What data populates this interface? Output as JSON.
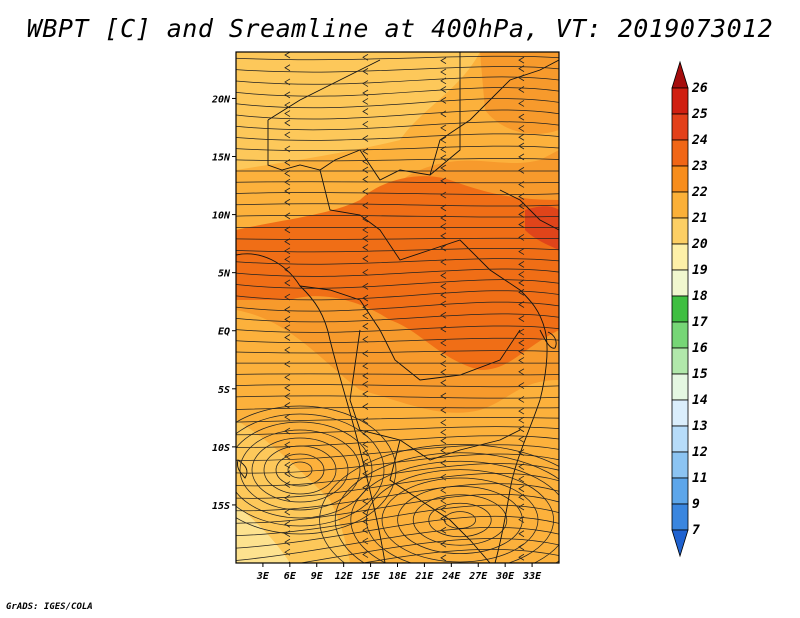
{
  "title": "WBPT [C] and Sreamline at 400hPa, VT: 2019073012",
  "footer": "GrADS: IGES/COLA",
  "map": {
    "lon_range": [
      0,
      36
    ],
    "lat_range": [
      -20,
      24
    ],
    "x_ticks": [
      "3E",
      "6E",
      "9E",
      "12E",
      "15E",
      "18E",
      "21E",
      "24E",
      "27E",
      "30E",
      "33E"
    ],
    "y_ticks": [
      "20N",
      "15N",
      "10N",
      "5N",
      "EQ",
      "5S",
      "10S",
      "15S"
    ],
    "field_colors": {
      "above_22": "#f06e16",
      "22_to_23": "#f79a2c",
      "21_to_22": "#fcb13c",
      "20_to_21": "#fdc85a",
      "below_20": "#fde28f",
      "above_24": "#e0441a"
    }
  },
  "colorbar": {
    "levels": [
      "26",
      "25",
      "24",
      "23",
      "22",
      "21",
      "20",
      "19",
      "18",
      "17",
      "16",
      "15",
      "14",
      "13",
      "12",
      "11",
      "9",
      "7"
    ],
    "colors": [
      "#a50d0d",
      "#d01f11",
      "#e3401a",
      "#f06616",
      "#f78d1c",
      "#fbb038",
      "#fdcf64",
      "#fef0a8",
      "#f1f7cf",
      "#3fbf41",
      "#76d676",
      "#b1e8ab",
      "#e5f7e2",
      "#dbeefc",
      "#b7dcf9",
      "#8cc4f2",
      "#5da6ea",
      "#3a86df",
      "#1f62d0"
    ]
  }
}
